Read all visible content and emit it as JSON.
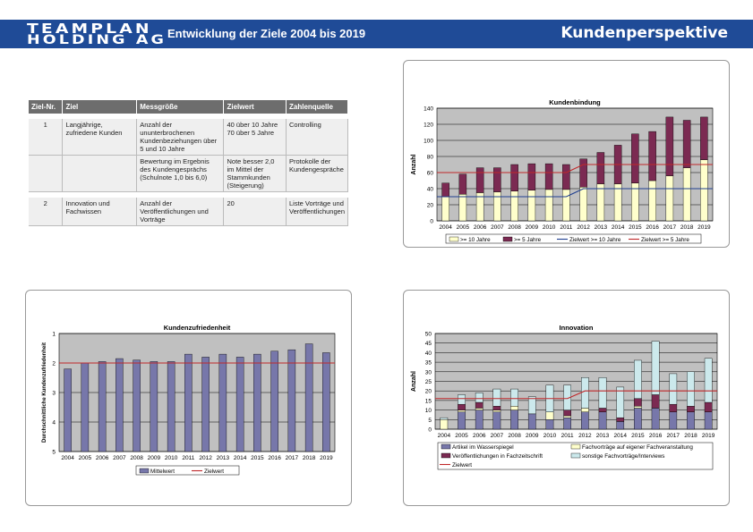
{
  "header": {
    "logo_line1": "TEAMPLAN",
    "logo_line2": "HOLDING AG",
    "subtitle": "Entwicklung der Ziele 2004 bis 2019",
    "section": "Kundenperspektive"
  },
  "table": {
    "headers": [
      "Ziel-Nr.",
      "Ziel",
      "Messgröße",
      "Zielwert",
      "Zahlenquelle"
    ],
    "rows": [
      {
        "nr": "1",
        "ziel": "Langjährige, zufriedene Kunden",
        "mess": "Anzahl der ununterbrochenen Kundenbeziehungen über 5 und 10 Jahre",
        "zielwert": "40 über 10 Jahre 70 über 5 Jahre",
        "quelle": "Controlling"
      },
      {
        "nr": "",
        "ziel": "",
        "mess": "Bewertung im Ergebnis des Kundengesprächs (Schulnote 1,0 bis 6,0)",
        "zielwert": "Note besser 2,0 im Mittel der Stammkunden (Steigerung)",
        "quelle": "Protokolle der Kundengespräche"
      },
      {
        "nr": "2",
        "ziel": "Innovation und Fachwissen",
        "mess": "Anzahl der Veröffentlichungen und Vorträge",
        "zielwert": "20",
        "quelle": "Liste Vorträge und Veröffentlichungen"
      }
    ]
  },
  "colors": {
    "header_bg": "#1f4b97",
    "plot_bg": "#c0c0c0",
    "bar_light": "#ffffcc",
    "bar_dark": "#7b2a52",
    "line_blue": "#1f3f8f",
    "line_red": "#c0282a",
    "bar_mittel": "#7777aa",
    "bar_artikel": "#7777aa",
    "bar_fachzeit": "#7b2a52",
    "bar_sonstige": "#cce9ec",
    "grid": "#000000"
  },
  "chart_data": [
    {
      "type": "bar",
      "stacked": true,
      "title": "Kundenbindung",
      "ylabel": "Anzahl",
      "xlabel": "",
      "categories": [
        "2004",
        "2005",
        "2006",
        "2007",
        "2008",
        "2009",
        "2010",
        "2011",
        "2012",
        "2013",
        "2014",
        "2015",
        "2016",
        "2017",
        "2018",
        "2019"
      ],
      "ylim": [
        0,
        140
      ],
      "yticks": [
        0,
        20,
        40,
        60,
        80,
        100,
        120,
        140
      ],
      "series": [
        {
          "name": ">= 10 Jahre",
          "kind": "bar",
          "values": [
            30,
            33,
            35,
            36,
            37,
            38,
            39,
            39,
            42,
            46,
            46,
            47,
            50,
            56,
            66,
            76
          ]
        },
        {
          "name": ">= 5 Jahre",
          "kind": "bar",
          "values": [
            17,
            25,
            31,
            30,
            33,
            33,
            32,
            31,
            35,
            39,
            48,
            61,
            61,
            73,
            59,
            53
          ]
        },
        {
          "name": "Zielwert >= 10 Jahre",
          "kind": "line",
          "values": [
            30,
            30,
            30,
            30,
            30,
            30,
            30,
            30,
            40,
            40,
            40,
            40,
            40,
            40,
            40,
            40
          ]
        },
        {
          "name": "Zielwert >= 5 Jahre",
          "kind": "line",
          "values": [
            60,
            60,
            60,
            60,
            60,
            60,
            60,
            60,
            70,
            70,
            70,
            70,
            70,
            70,
            70,
            70
          ]
        }
      ],
      "legend": "bottom"
    },
    {
      "type": "bar",
      "title": "Kundenzufriedenheit",
      "ylabel": "Durchschnittliche Kundenzufriedenheit",
      "xlabel": "",
      "categories": [
        "2004",
        "2005",
        "2006",
        "2007",
        "2008",
        "2009",
        "2010",
        "2011",
        "2012",
        "2013",
        "2014",
        "2015",
        "2016",
        "2017",
        "2018",
        "2019"
      ],
      "ylim": [
        5,
        1
      ],
      "inverted": true,
      "yticks": [
        1,
        2,
        3,
        4,
        5
      ],
      "series": [
        {
          "name": "Mittelwert",
          "kind": "bar",
          "values": [
            2.2,
            2.0,
            1.95,
            1.85,
            1.9,
            1.95,
            1.95,
            1.7,
            1.8,
            1.7,
            1.8,
            1.7,
            1.6,
            1.55,
            1.35,
            1.65
          ]
        },
        {
          "name": "Zielwert",
          "kind": "line",
          "values": [
            2,
            2,
            2,
            2,
            2,
            2,
            2,
            2,
            2,
            2,
            2,
            2,
            2,
            2,
            2,
            2
          ]
        }
      ],
      "legend": "bottom"
    },
    {
      "type": "bar",
      "stacked": true,
      "title": "Innovation",
      "ylabel": "Anzahl",
      "xlabel": "",
      "categories": [
        "2004",
        "2005",
        "2006",
        "2007",
        "2008",
        "2009",
        "2010",
        "2011",
        "2012",
        "2013",
        "2014",
        "2015",
        "2016",
        "2017",
        "2018",
        "2019"
      ],
      "ylim": [
        0,
        50
      ],
      "yticks": [
        0,
        5,
        10,
        15,
        20,
        25,
        30,
        35,
        40,
        45,
        50
      ],
      "series": [
        {
          "name": "Artikel im Wasserspiegel",
          "kind": "bar",
          "values": [
            0,
            9,
            10,
            9,
            10,
            8,
            5,
            6,
            9,
            9,
            4,
            11,
            11,
            9,
            9,
            9
          ]
        },
        {
          "name": "Fachvorträge auf eigener Fachveranstaltung",
          "kind": "bar",
          "values": [
            5,
            1,
            1,
            1,
            2,
            0,
            4,
            1,
            2,
            0,
            0,
            1,
            0,
            0,
            0,
            0
          ]
        },
        {
          "name": "Veröffentlichungen in Fachzeitschrift",
          "kind": "bar",
          "values": [
            0,
            3,
            3,
            2,
            0,
            0,
            0,
            3,
            0,
            2,
            2,
            4,
            7,
            4,
            3,
            5
          ]
        },
        {
          "name": "sonstige Fachvorträge/Interviews",
          "kind": "bar",
          "values": [
            1,
            5,
            5,
            9,
            9,
            9,
            14,
            13,
            16,
            16,
            16,
            20,
            28,
            16,
            18,
            23
          ]
        },
        {
          "name": "Zielwert",
          "kind": "line",
          "values": [
            16,
            16,
            16,
            16,
            16,
            16,
            16,
            16,
            20,
            20,
            20,
            20,
            20,
            20,
            20,
            20
          ]
        }
      ],
      "legend": "bottom"
    }
  ]
}
